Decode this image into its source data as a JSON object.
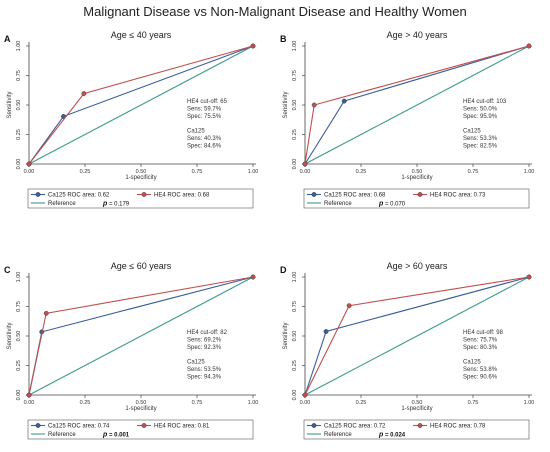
{
  "figure_title": "Malignant Disease vs Non-Malignant Disease and Healthy Women",
  "chart_data": [
    {
      "type": "line",
      "panel_letter": "A",
      "title": "Age ≤ 40 years",
      "xlabel": "1-specificity",
      "ylabel": "Sensitivity",
      "xlim": [
        0,
        1
      ],
      "ylim": [
        0,
        1
      ],
      "x_ticks": [
        "0.00",
        "0.25",
        "0.50",
        "0.75",
        "1.00"
      ],
      "y_ticks": [
        "0.00",
        "0.25",
        "0.50",
        "0.75",
        "1.00"
      ],
      "series": [
        {
          "name": "Ca125 ROC area: 0.62",
          "color": "#3a5d9c",
          "x": [
            0,
            0.154,
            1
          ],
          "y": [
            0,
            0.403,
            1
          ]
        },
        {
          "name": "HE4 ROC area: 0.68",
          "color": "#c0504d",
          "x": [
            0,
            0.245,
            1
          ],
          "y": [
            0,
            0.597,
            1
          ]
        },
        {
          "name": "Reference",
          "color": "#3c9a8a",
          "x": [
            0,
            1
          ],
          "y": [
            0,
            1
          ]
        }
      ],
      "annotation": [
        "HE4 cut-off: 65",
        "Sens: 59.7%",
        "Spec: 75.5%",
        "",
        "Ca125",
        "Sens: 40.3%",
        "Spec: 84.6%"
      ],
      "p_label": "p",
      "p_value": " = 0.179",
      "p_bold": false
    },
    {
      "type": "line",
      "panel_letter": "B",
      "title": "Age > 40 years",
      "xlabel": "1-specificity",
      "ylabel": "Sensitivity",
      "xlim": [
        0,
        1
      ],
      "ylim": [
        0,
        1
      ],
      "x_ticks": [
        "0.00",
        "0.25",
        "0.50",
        "0.75",
        "1.00"
      ],
      "y_ticks": [
        "0.00",
        "0.25",
        "0.50",
        "0.75",
        "1.00"
      ],
      "series": [
        {
          "name": "Ca125 ROC area: 0.68",
          "color": "#3a5d9c",
          "x": [
            0,
            0.175,
            1
          ],
          "y": [
            0,
            0.533,
            1
          ]
        },
        {
          "name": "HE4 ROC area: 0.73",
          "color": "#c0504d",
          "x": [
            0,
            0.041,
            1
          ],
          "y": [
            0,
            0.5,
            1
          ]
        },
        {
          "name": "Reference",
          "color": "#3c9a8a",
          "x": [
            0,
            1
          ],
          "y": [
            0,
            1
          ]
        }
      ],
      "annotation": [
        "HE4 cut-off: 103",
        "Sens: 50.0%",
        "Spec: 95.9%",
        "",
        "Ca125",
        "Sens: 53.3%",
        "Spec: 82.5%"
      ],
      "p_label": "p",
      "p_value": " = 0.070",
      "p_bold": false
    },
    {
      "type": "line",
      "panel_letter": "C",
      "title": "Age ≤ 60 years",
      "xlabel": "1-specificity",
      "ylabel": "Sensitivity",
      "xlim": [
        0,
        1
      ],
      "ylim": [
        0,
        1
      ],
      "x_ticks": [
        "0.00",
        "0.25",
        "0.50",
        "0.75",
        "1.00"
      ],
      "y_ticks": [
        "0.00",
        "0.25",
        "0.50",
        "0.75",
        "1.00"
      ],
      "series": [
        {
          "name": "Ca125 ROC area: 0.74",
          "color": "#3a5d9c",
          "x": [
            0,
            0.057,
            1
          ],
          "y": [
            0,
            0.535,
            1
          ]
        },
        {
          "name": "HE4 ROC area: 0.81",
          "color": "#c0504d",
          "x": [
            0,
            0.077,
            1
          ],
          "y": [
            0,
            0.692,
            1
          ]
        },
        {
          "name": "Reference",
          "color": "#3c9a8a",
          "x": [
            0,
            1
          ],
          "y": [
            0,
            1
          ]
        }
      ],
      "annotation": [
        "HE4 cut-off: 82",
        "Sens: 69.2%",
        "Spec: 92.3%",
        "",
        "Ca125",
        "Sens: 53.5%",
        "Spec: 94.3%"
      ],
      "p_label": "p",
      "p_value": " = 0.001",
      "p_bold": true
    },
    {
      "type": "line",
      "panel_letter": "D",
      "title": "Age > 60 years",
      "xlabel": "1-specificity",
      "ylabel": "Sensitivity",
      "xlim": [
        0,
        1
      ],
      "ylim": [
        0,
        1
      ],
      "x_ticks": [
        "0.00",
        "0.25",
        "0.50",
        "0.75",
        "1.00"
      ],
      "y_ticks": [
        "0.00",
        "0.25",
        "0.50",
        "0.75",
        "1.00"
      ],
      "series": [
        {
          "name": "Ca125 ROC area: 0.72",
          "color": "#3a5d9c",
          "x": [
            0,
            0.094,
            1
          ],
          "y": [
            0,
            0.538,
            1
          ]
        },
        {
          "name": "HE4 ROC area: 0.78",
          "color": "#c0504d",
          "x": [
            0,
            0.197,
            1
          ],
          "y": [
            0,
            0.757,
            1
          ]
        },
        {
          "name": "Reference",
          "color": "#3c9a8a",
          "x": [
            0,
            1
          ],
          "y": [
            0,
            1
          ]
        }
      ],
      "annotation": [
        "HE4 cut-off: 98",
        "Sens: 75.7%",
        "Spec: 80.3%",
        "",
        "Ca125",
        "Sens: 53.8%",
        "Spec: 90.6%"
      ],
      "p_label": "p",
      "p_value": " = 0.024",
      "p_bold": true
    }
  ]
}
